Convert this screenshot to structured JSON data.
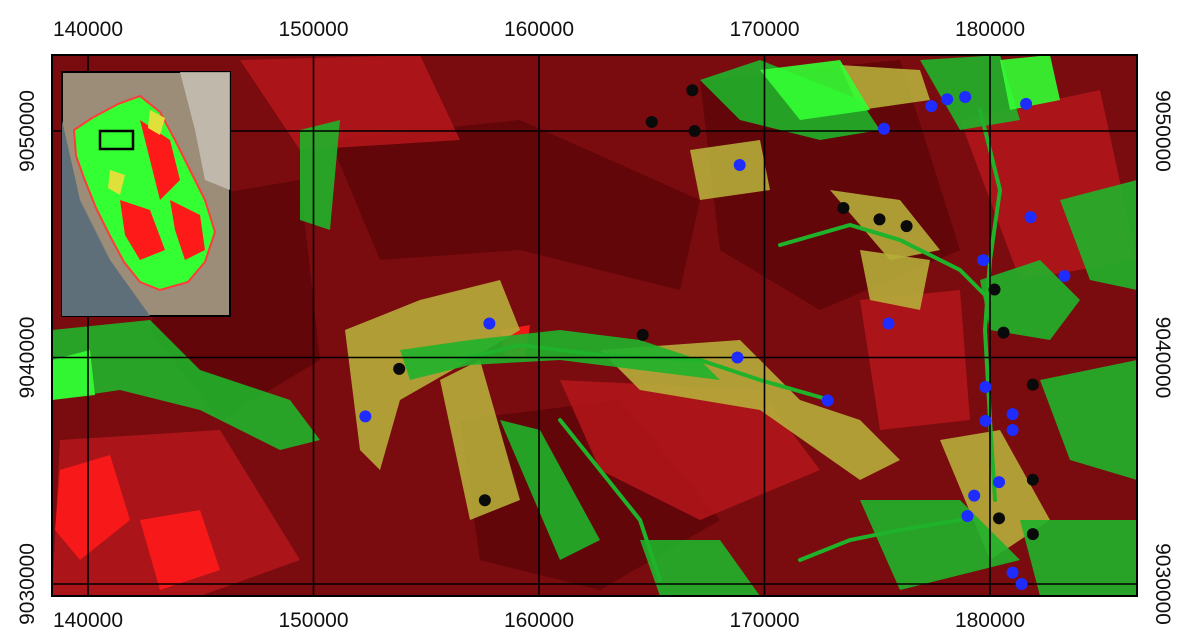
{
  "map": {
    "x_ticks": [
      "140000",
      "150000",
      "160000",
      "170000",
      "180000"
    ],
    "y_ticks": [
      "9050000",
      "9040000",
      "9030000"
    ],
    "palette": {
      "background": "#7a0b0e",
      "dark_red": "#5e0608",
      "red": "#b0151a",
      "bright_red": "#ff1a1a",
      "green": "#1fb22a",
      "bright_green": "#33ff33",
      "olive": "#b6ad3a",
      "grid": "#000000",
      "point_blue": "#1e2cff",
      "point_black": "#0a0a0a"
    }
  },
  "inset": {
    "icon": "overview-inset-map",
    "land_color": "#9c8d78",
    "sea_color": "#5f6f7a",
    "boundary_color": "#ff3b3b",
    "locator_box_color": "#000000"
  },
  "points_blue": [
    [
      168900,
      9048500
    ],
    [
      175300,
      9050100
    ],
    [
      177400,
      9051100
    ],
    [
      178100,
      9051400
    ],
    [
      178900,
      9051500
    ],
    [
      181600,
      9051200
    ],
    [
      181800,
      9046200
    ],
    [
      183300,
      9043600
    ],
    [
      179700,
      9044300
    ],
    [
      175500,
      9041500
    ],
    [
      168800,
      9040000
    ],
    [
      157800,
      9041500
    ],
    [
      152300,
      9037400
    ],
    [
      172800,
      9038100
    ],
    [
      179800,
      9038700
    ],
    [
      179800,
      9037200
    ],
    [
      181000,
      9037500
    ],
    [
      181000,
      9036800
    ],
    [
      180400,
      9034500
    ],
    [
      179300,
      9033900
    ],
    [
      179000,
      9033000
    ],
    [
      181000,
      9030500
    ],
    [
      181400,
      9030000
    ]
  ],
  "points_black": [
    [
      166800,
      9051800
    ],
    [
      165000,
      9050400
    ],
    [
      166900,
      9050000
    ],
    [
      173500,
      9046600
    ],
    [
      175100,
      9046100
    ],
    [
      176300,
      9045800
    ],
    [
      180200,
      9043000
    ],
    [
      180600,
      9041100
    ],
    [
      164600,
      9041000
    ],
    [
      153800,
      9039500
    ],
    [
      181900,
      9038800
    ],
    [
      181900,
      9034600
    ],
    [
      180400,
      9032900
    ],
    [
      181900,
      9032200
    ],
    [
      157600,
      9033700
    ]
  ]
}
